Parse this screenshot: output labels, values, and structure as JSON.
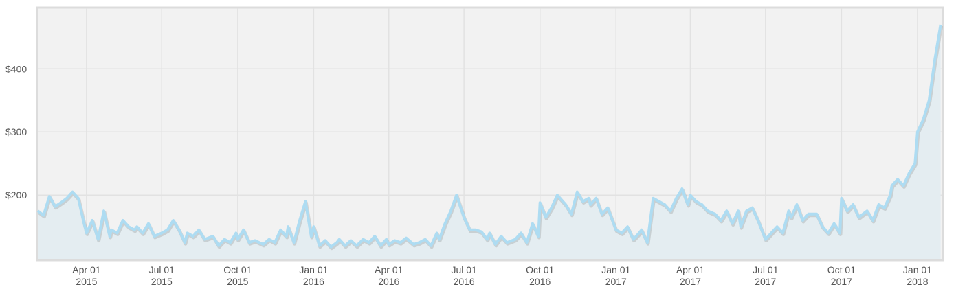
{
  "chart_data": {
    "type": "line",
    "color": "#aedcf2",
    "grid": true,
    "x": [
      "2015-02-01",
      "2015-02-08",
      "2015-02-15",
      "2015-02-22",
      "2015-03-01",
      "2015-03-08",
      "2015-03-15",
      "2015-03-22",
      "2015-03-29",
      "2015-04-01",
      "2015-04-08",
      "2015-04-15",
      "2015-04-22",
      "2015-04-29",
      "2015-05-01",
      "2015-05-08",
      "2015-05-15",
      "2015-05-22",
      "2015-05-29",
      "2015-06-01",
      "2015-06-08",
      "2015-06-15",
      "2015-06-22",
      "2015-07-01",
      "2015-07-08",
      "2015-07-15",
      "2015-07-22",
      "2015-07-29",
      "2015-08-01",
      "2015-08-08",
      "2015-08-15",
      "2015-08-22",
      "2015-09-01",
      "2015-09-08",
      "2015-09-15",
      "2015-09-22",
      "2015-09-29",
      "2015-10-01",
      "2015-10-08",
      "2015-10-15",
      "2015-10-22",
      "2015-11-01",
      "2015-11-08",
      "2015-11-15",
      "2015-11-22",
      "2015-11-29",
      "2015-12-01",
      "2015-12-08",
      "2015-12-15",
      "2015-12-22",
      "2015-12-29",
      "2016-01-01",
      "2016-01-08",
      "2016-01-15",
      "2016-01-22",
      "2016-01-29",
      "2016-02-01",
      "2016-02-08",
      "2016-02-15",
      "2016-02-22",
      "2016-03-01",
      "2016-03-08",
      "2016-03-15",
      "2016-03-22",
      "2016-03-29",
      "2016-04-01",
      "2016-04-08",
      "2016-04-15",
      "2016-04-22",
      "2016-05-01",
      "2016-05-08",
      "2016-05-15",
      "2016-05-22",
      "2016-05-29",
      "2016-06-01",
      "2016-06-08",
      "2016-06-15",
      "2016-06-22",
      "2016-07-01",
      "2016-07-08",
      "2016-07-15",
      "2016-07-22",
      "2016-07-29",
      "2016-08-01",
      "2016-08-08",
      "2016-08-15",
      "2016-08-22",
      "2016-09-01",
      "2016-09-08",
      "2016-09-15",
      "2016-09-22",
      "2016-09-29",
      "2016-10-01",
      "2016-10-08",
      "2016-10-15",
      "2016-10-22",
      "2016-11-01",
      "2016-11-08",
      "2016-11-15",
      "2016-11-22",
      "2016-11-29",
      "2016-12-01",
      "2016-12-08",
      "2016-12-15",
      "2016-12-22",
      "2017-01-01",
      "2017-01-08",
      "2017-01-15",
      "2017-01-22",
      "2017-01-29",
      "2017-02-01",
      "2017-02-08",
      "2017-02-15",
      "2017-02-22",
      "2017-03-01",
      "2017-03-08",
      "2017-03-15",
      "2017-03-22",
      "2017-03-29",
      "2017-04-01",
      "2017-04-08",
      "2017-04-15",
      "2017-04-22",
      "2017-05-01",
      "2017-05-08",
      "2017-05-15",
      "2017-05-22",
      "2017-05-29",
      "2017-06-01",
      "2017-06-08",
      "2017-06-15",
      "2017-06-22",
      "2017-07-01",
      "2017-07-08",
      "2017-07-15",
      "2017-07-22",
      "2017-07-29",
      "2017-08-01",
      "2017-08-08",
      "2017-08-15",
      "2017-08-22",
      "2017-09-01",
      "2017-09-08",
      "2017-09-15",
      "2017-09-22",
      "2017-09-29",
      "2017-10-01",
      "2017-10-08",
      "2017-10-15",
      "2017-10-22",
      "2017-11-01",
      "2017-11-08",
      "2017-11-15",
      "2017-11-22",
      "2017-11-29",
      "2017-12-01",
      "2017-12-08",
      "2017-12-15",
      "2017-12-22",
      "2017-12-29",
      "2018-01-01",
      "2018-01-08",
      "2018-01-15",
      "2018-01-22",
      "2018-01-29"
    ],
    "values": [
      175,
      168,
      198,
      182,
      188,
      195,
      205,
      195,
      155,
      140,
      160,
      130,
      175,
      135,
      145,
      140,
      160,
      150,
      145,
      150,
      140,
      155,
      135,
      140,
      145,
      160,
      145,
      125,
      140,
      135,
      145,
      130,
      135,
      120,
      130,
      125,
      140,
      130,
      145,
      125,
      128,
      122,
      130,
      125,
      145,
      135,
      150,
      125,
      160,
      190,
      135,
      150,
      120,
      128,
      118,
      125,
      130,
      120,
      128,
      120,
      130,
      125,
      135,
      120,
      130,
      122,
      128,
      125,
      132,
      122,
      125,
      130,
      120,
      140,
      130,
      155,
      175,
      200,
      165,
      145,
      145,
      142,
      130,
      140,
      122,
      135,
      125,
      130,
      140,
      125,
      155,
      135,
      188,
      165,
      180,
      200,
      185,
      170,
      205,
      190,
      195,
      185,
      195,
      170,
      180,
      145,
      140,
      150,
      130,
      140,
      145,
      125,
      195,
      190,
      185,
      175,
      195,
      210,
      185,
      200,
      190,
      185,
      175,
      170,
      160,
      175,
      155,
      175,
      150,
      175,
      180,
      160,
      130,
      140,
      150,
      140,
      175,
      165,
      185,
      160,
      170,
      170,
      150,
      140,
      155,
      140,
      195,
      175,
      185,
      165,
      175,
      160,
      185,
      180,
      200,
      215,
      225,
      215,
      235,
      250,
      300,
      320,
      350,
      415,
      470
    ],
    "xlim": [
      "2015-02-01",
      "2018-01-31"
    ],
    "xticks": [
      {
        "value": "2015-04-01",
        "label": "Apr 01 2015"
      },
      {
        "value": "2015-07-01",
        "label": "Jul 01 2015"
      },
      {
        "value": "2015-10-01",
        "label": "Oct 01 2015"
      },
      {
        "value": "2016-01-01",
        "label": "Jan 01 2016"
      },
      {
        "value": "2016-04-01",
        "label": "Apr 01 2016"
      },
      {
        "value": "2016-07-01",
        "label": "Jul 01 2016"
      },
      {
        "value": "2016-10-01",
        "label": "Oct 01 2016"
      },
      {
        "value": "2017-01-01",
        "label": "Jan 01 2017"
      },
      {
        "value": "2017-04-01",
        "label": "Apr 01 2017"
      },
      {
        "value": "2017-07-01",
        "label": "Jul 01 2017"
      },
      {
        "value": "2017-10-01",
        "label": "Oct 01 2017"
      },
      {
        "value": "2018-01-01",
        "label": "Jan 01 2018"
      }
    ],
    "ylim": [
      98,
      496
    ],
    "yticks": [
      {
        "value": 200,
        "label": "$200"
      },
      {
        "value": 300,
        "label": "$300"
      },
      {
        "value": 400,
        "label": "$400"
      }
    ]
  }
}
